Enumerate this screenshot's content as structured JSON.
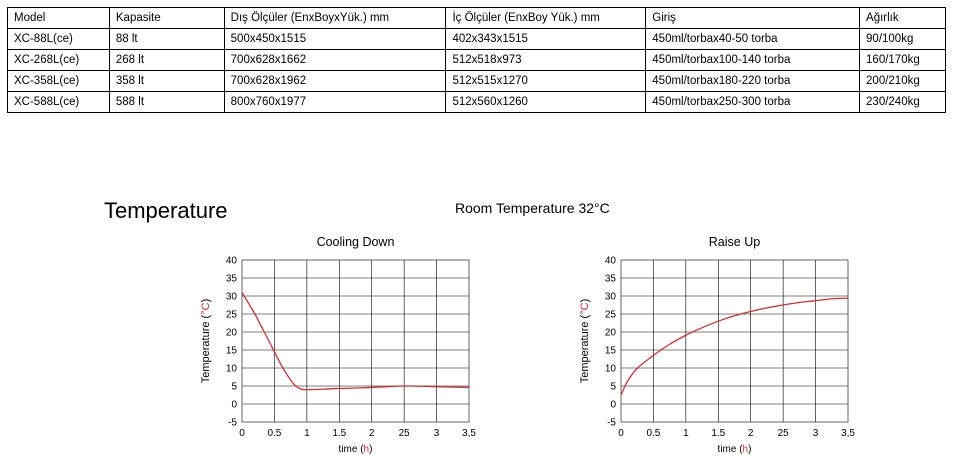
{
  "table": {
    "headers": [
      "Model",
      "Kapasite",
      "Dış Ölçüler (EnxBoyxYük.) mm",
      "İç Ölçüler (EnxBoy Yük.) mm",
      "Giriş",
      "Ağırlık"
    ],
    "rows": [
      [
        "XC-88L(ce)",
        "88 lt",
        "500x450x1515",
        "402x343x1515",
        "450ml/torbax40-50 torba",
        "90/100kg"
      ],
      [
        "XC-268L(ce)",
        "268 lt",
        "700x628x1662",
        "512x518x973",
        "450ml/torbax100-140 torba",
        "160/170kg"
      ],
      [
        "XC-358L(ce)",
        "358 lt",
        "700x628x1962",
        "512x515x1270",
        "450ml/torbax180-220 torba",
        "200/210kg"
      ],
      [
        "XC-588L(ce)",
        "588 lt",
        "800x760x1977",
        "512x560x1260",
        "450ml/torbax250-300 torba",
        "230/240kg"
      ]
    ]
  },
  "heading": "Temperature",
  "room_title": "Room Temperature 32°C",
  "chart_data": [
    {
      "type": "line",
      "title": "Cooling Down",
      "ylabel_prefix": "Temperature (",
      "ylabel_unit": "°C",
      "ylabel_suffix": ")",
      "xlabel_prefix": "time (",
      "xlabel_unit": "h",
      "xlabel_suffix": ")",
      "xticks": [
        "0",
        "0.5",
        "1",
        "1.5",
        "2",
        "25",
        "3",
        "3,5"
      ],
      "yticks": [
        "-5",
        "0",
        "5",
        "10",
        "15",
        "20",
        "25",
        "30",
        "35",
        "40"
      ],
      "xlim": [
        0,
        3.5
      ],
      "ylim": [
        -5,
        40
      ],
      "grid": true,
      "x": [
        0,
        0.1,
        0.2,
        0.3,
        0.4,
        0.5,
        0.6,
        0.7,
        0.8,
        0.9,
        1.0,
        1.25,
        1.5,
        2.0,
        2.5,
        3.0,
        3.5
      ],
      "y": [
        31,
        28,
        25,
        21.5,
        18,
        14.5,
        11,
        8,
        5.5,
        4.2,
        4.0,
        4.1,
        4.3,
        4.6,
        5.0,
        4.8,
        4.6
      ]
    },
    {
      "type": "line",
      "title": "Raise Up",
      "ylabel_prefix": "Temperature (",
      "ylabel_unit": "°C",
      "ylabel_suffix": ")",
      "xlabel_prefix": "time (",
      "xlabel_unit": "h",
      "xlabel_suffix": ")",
      "xticks": [
        "0",
        "0.5",
        "1",
        "1.5",
        "2",
        "25",
        "3",
        "3,5"
      ],
      "yticks": [
        "-5",
        "0",
        "5",
        "10",
        "15",
        "20",
        "25",
        "30",
        "35",
        "40"
      ],
      "xlim": [
        0,
        3.5
      ],
      "ylim": [
        -5,
        40
      ],
      "grid": true,
      "x": [
        0,
        0.1,
        0.25,
        0.5,
        0.75,
        1.0,
        1.25,
        1.5,
        1.75,
        2.0,
        2.25,
        2.5,
        2.75,
        3.0,
        3.25,
        3.5
      ],
      "y": [
        2.5,
        6.3,
        9.9,
        13.5,
        16.6,
        19.1,
        21.2,
        23.0,
        24.5,
        25.7,
        26.7,
        27.5,
        28.2,
        28.7,
        29.2,
        29.4
      ]
    }
  ]
}
